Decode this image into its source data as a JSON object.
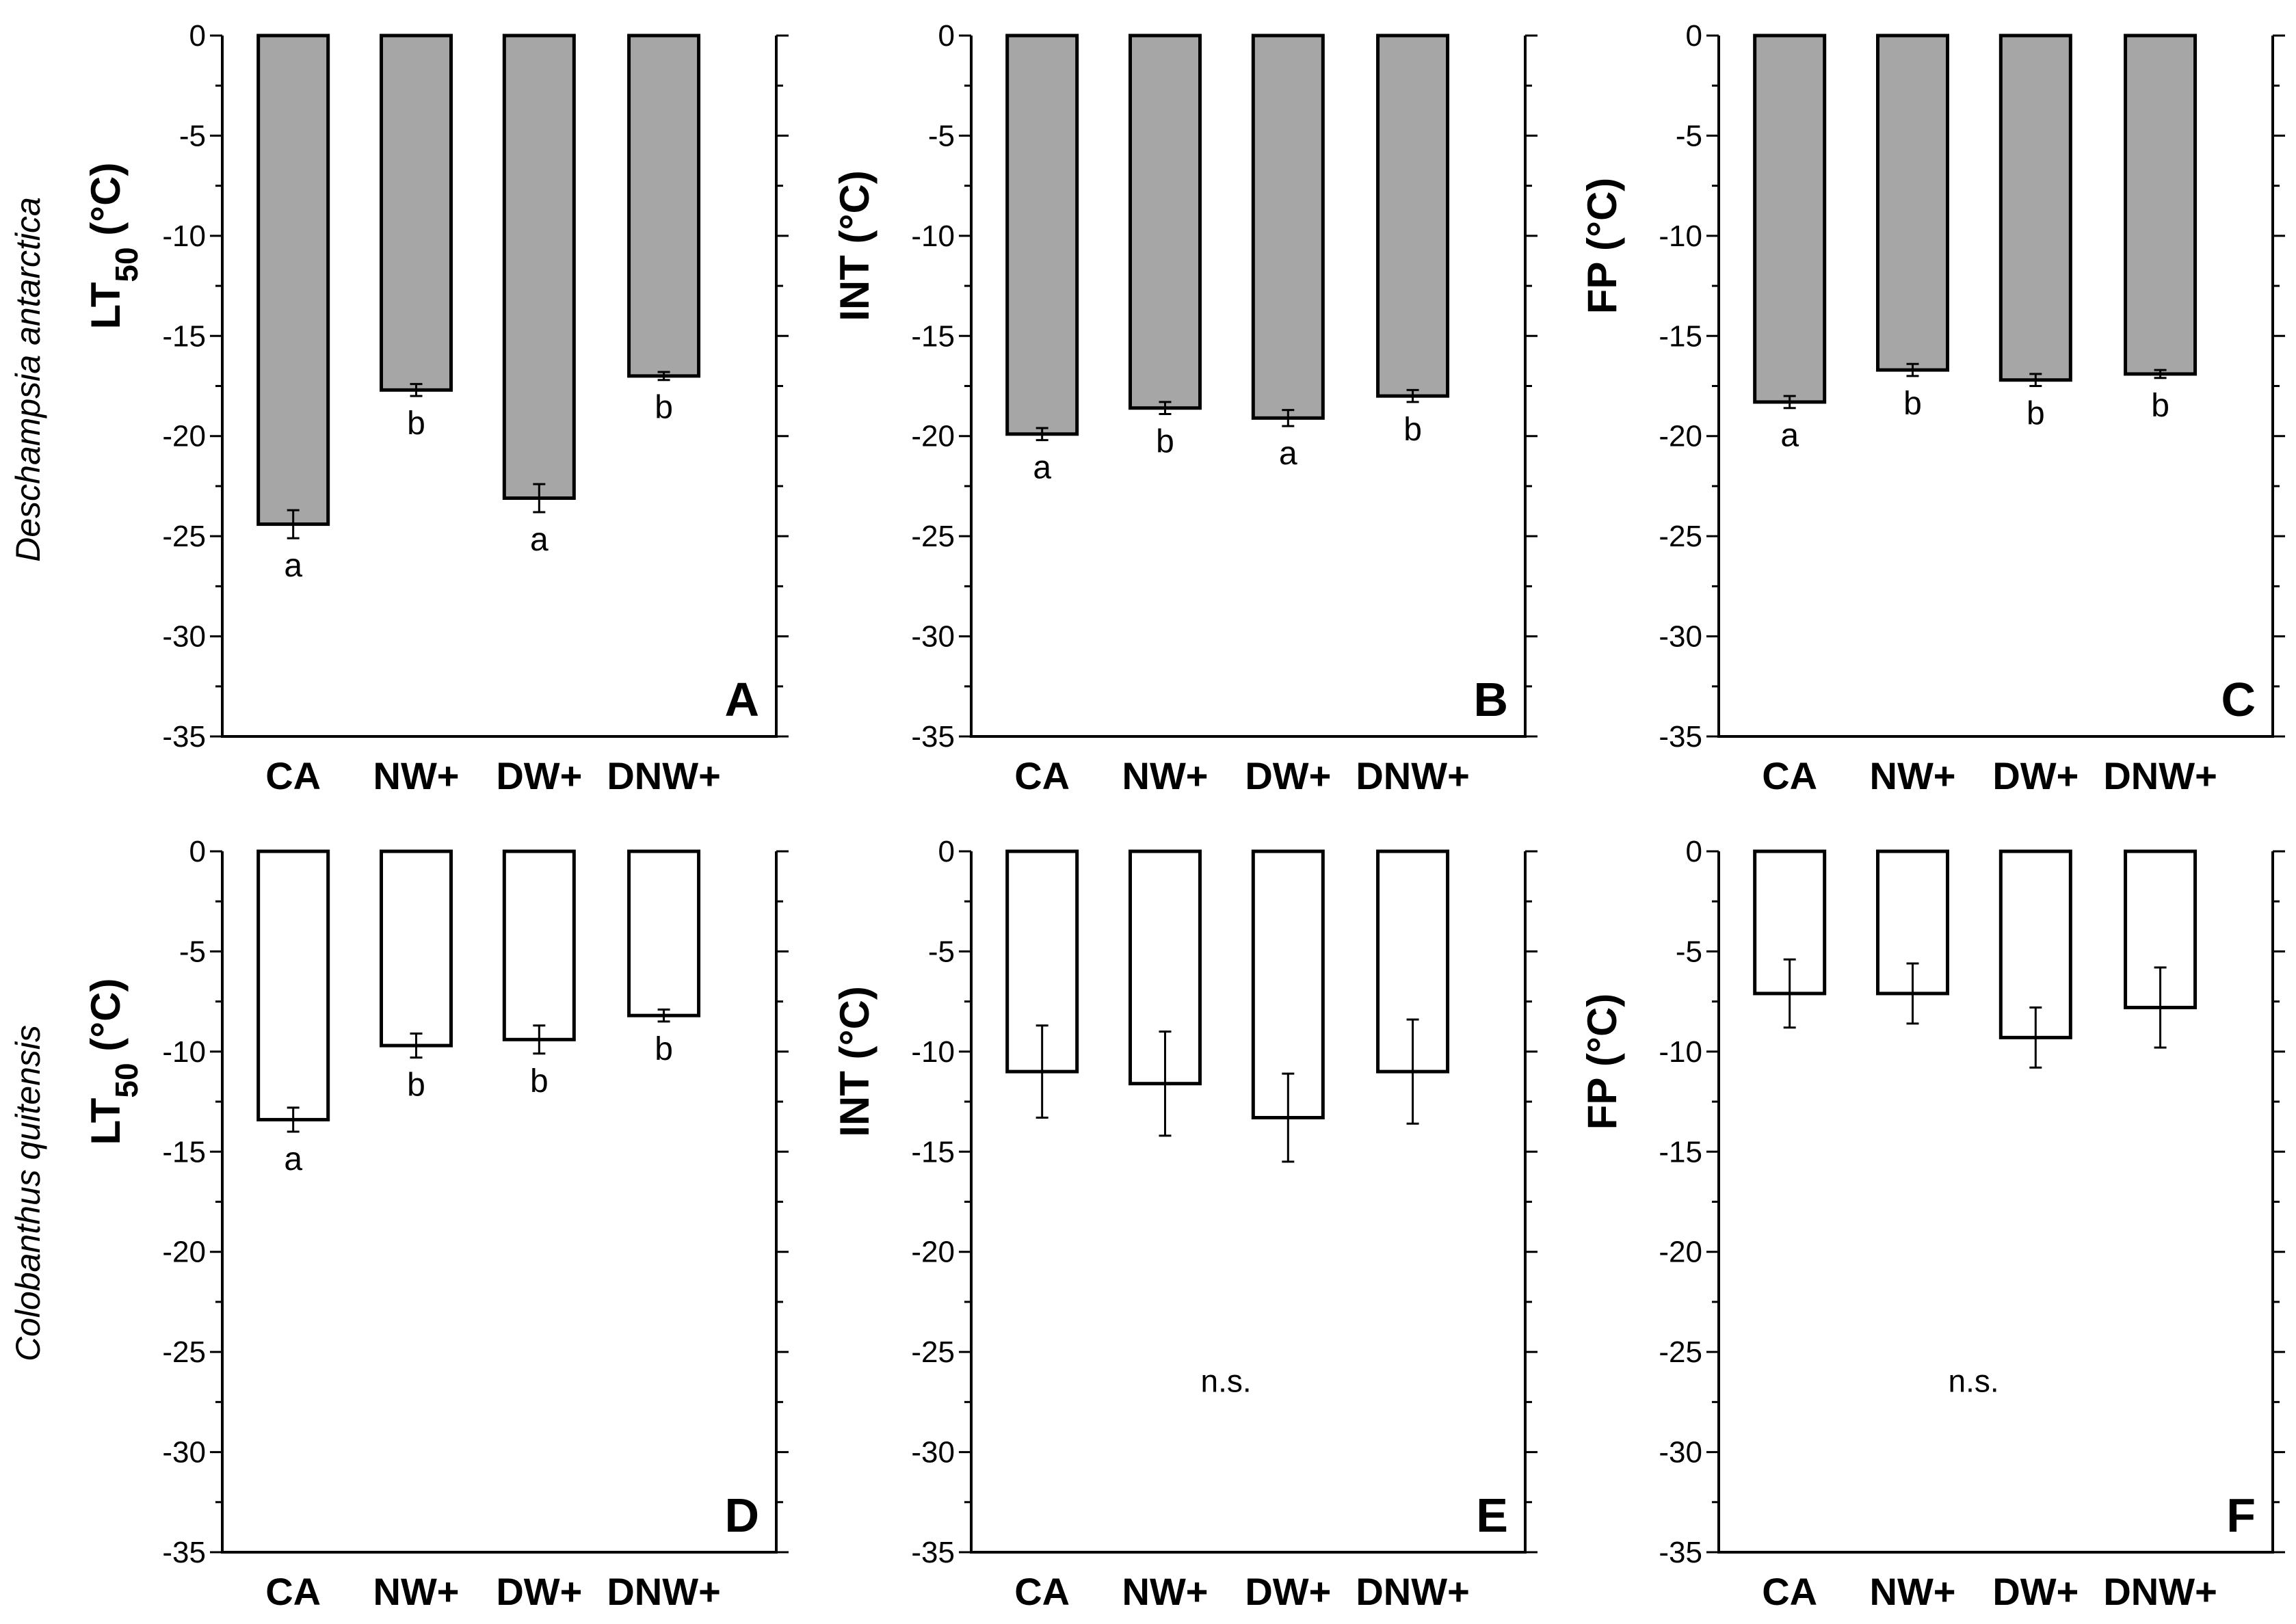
{
  "species": [
    "Deschampsia antarctica",
    "Colobanthus quitensis"
  ],
  "colors": {
    "filled_bar": "#a6a6a6",
    "open_bar": "#ffffff",
    "stroke": "#000000"
  },
  "chart_data": [
    {
      "type": "bar",
      "panel": "A",
      "row": 0,
      "col": 0,
      "ylabel": "LT",
      "ylabel_sub": "50",
      "ylabel_unit": " (°C)",
      "categories": [
        "CA",
        "NW+",
        "DW+",
        "DNW+"
      ],
      "values": [
        -24.4,
        -17.7,
        -23.1,
        -17.0
      ],
      "errors": [
        0.7,
        0.3,
        0.7,
        0.2
      ],
      "significance": [
        "a",
        "b",
        "a",
        "b"
      ],
      "note": "",
      "ylim": [
        -35,
        0
      ],
      "yticks": [
        "0",
        "-5",
        "-10",
        "-15",
        "-20",
        "-25",
        "-30",
        "-35"
      ],
      "fill": "gray"
    },
    {
      "type": "bar",
      "panel": "B",
      "row": 0,
      "col": 1,
      "ylabel": "INT (°C)",
      "ylabel_sub": "",
      "ylabel_unit": "",
      "categories": [
        "CA",
        "NW+",
        "DW+",
        "DNW+"
      ],
      "values": [
        -19.9,
        -18.6,
        -19.1,
        -18.0
      ],
      "errors": [
        0.3,
        0.3,
        0.4,
        0.3
      ],
      "significance": [
        "a",
        "b",
        "a",
        "b"
      ],
      "note": "",
      "ylim": [
        -35,
        0
      ],
      "yticks": [
        "0",
        "-5",
        "-10",
        "-15",
        "-20",
        "-25",
        "-30",
        "-35"
      ],
      "fill": "gray"
    },
    {
      "type": "bar",
      "panel": "C",
      "row": 0,
      "col": 2,
      "ylabel": "FP (°C)",
      "ylabel_sub": "",
      "ylabel_unit": "",
      "categories": [
        "CA",
        "NW+",
        "DW+",
        "DNW+"
      ],
      "values": [
        -18.3,
        -16.7,
        -17.2,
        -16.9
      ],
      "errors": [
        0.3,
        0.3,
        0.3,
        0.2
      ],
      "significance": [
        "a",
        "b",
        "b",
        "b"
      ],
      "note": "",
      "ylim": [
        -35,
        0
      ],
      "yticks": [
        "0",
        "-5",
        "-10",
        "-15",
        "-20",
        "-25",
        "-30",
        "-35"
      ],
      "fill": "gray"
    },
    {
      "type": "bar",
      "panel": "D",
      "row": 1,
      "col": 0,
      "ylabel": "LT",
      "ylabel_sub": "50",
      "ylabel_unit": " (°C)",
      "categories": [
        "CA",
        "NW+",
        "DW+",
        "DNW+"
      ],
      "values": [
        -13.4,
        -9.7,
        -9.4,
        -8.2
      ],
      "errors": [
        0.6,
        0.6,
        0.7,
        0.3
      ],
      "significance": [
        "a",
        "b",
        "b",
        "b"
      ],
      "note": "",
      "ylim": [
        -35,
        0
      ],
      "yticks": [
        "0",
        "-5",
        "-10",
        "-15",
        "-20",
        "-25",
        "-30",
        "-35"
      ],
      "fill": "white"
    },
    {
      "type": "bar",
      "panel": "E",
      "row": 1,
      "col": 1,
      "ylabel": "INT (°C)",
      "ylabel_sub": "",
      "ylabel_unit": "",
      "categories": [
        "CA",
        "NW+",
        "DW+",
        "DNW+"
      ],
      "values": [
        -11.0,
        -11.6,
        -13.3,
        -11.0
      ],
      "errors": [
        2.3,
        2.6,
        2.2,
        2.6
      ],
      "significance": [
        "",
        "",
        "",
        ""
      ],
      "note": "n.s.",
      "ylim": [
        -35,
        0
      ],
      "yticks": [
        "0",
        "-5",
        "-10",
        "-15",
        "-20",
        "-25",
        "-30",
        "-35"
      ],
      "fill": "white"
    },
    {
      "type": "bar",
      "panel": "F",
      "row": 1,
      "col": 2,
      "ylabel": "FP (°C)",
      "ylabel_sub": "",
      "ylabel_unit": "",
      "categories": [
        "CA",
        "NW+",
        "DW+",
        "DNW+"
      ],
      "values": [
        -7.1,
        -7.1,
        -9.3,
        -7.8
      ],
      "errors": [
        1.7,
        1.5,
        1.5,
        2.0
      ],
      "significance": [
        "",
        "",
        "",
        ""
      ],
      "note": "n.s.",
      "ylim": [
        -35,
        0
      ],
      "yticks": [
        "0",
        "-5",
        "-10",
        "-15",
        "-20",
        "-25",
        "-30",
        "-35"
      ],
      "fill": "white"
    }
  ]
}
